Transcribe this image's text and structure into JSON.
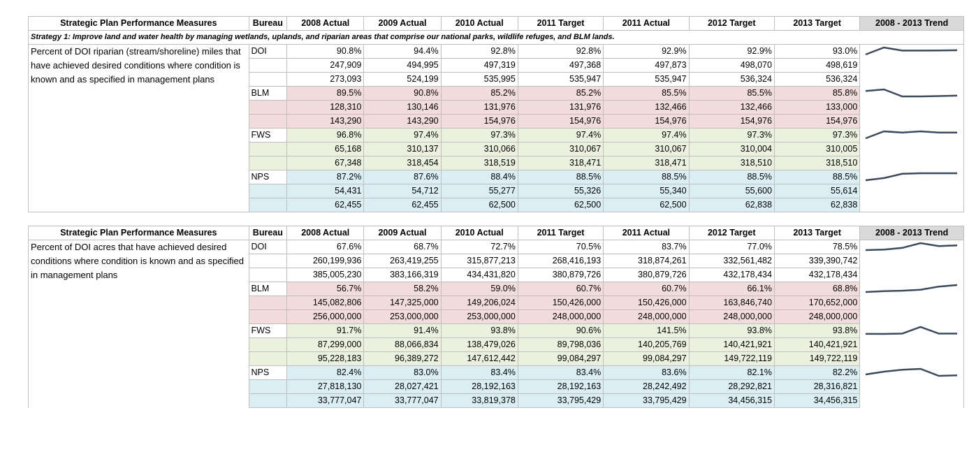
{
  "header": {
    "measure": "Strategic Plan Performance  Measures",
    "bureau": "Bureau",
    "cols": [
      "2008 Actual",
      "2009 Actual",
      "2010 Actual",
      "2011 Target",
      "2011 Actual",
      "2012 Target",
      "2013 Target"
    ],
    "trend": "2008 - 2013 Trend"
  },
  "strategy": "Strategy 1: Improve land and water health by managing wetlands, uplands, and riparian areas that comprise our national parks, wildlife refuges, and BLM lands.",
  "colors": {
    "blm": "#f2dcdb",
    "fws": "#ebf1de",
    "nps": "#dbeef4",
    "spark": "#3b4a5e"
  },
  "section1": {
    "measure": "Percent of DOI riparian (stream/shoreline) miles that have achieved desired conditions where condition is known and as specified in management plans",
    "groups": [
      {
        "bureau": "DOI",
        "cls": "doi",
        "rows": [
          [
            "90.8%",
            "94.4%",
            "92.8%",
            "92.8%",
            "92.9%",
            "92.9%",
            "93.0%"
          ],
          [
            "247,909",
            "494,995",
            "497,319",
            "497,368",
            "497,873",
            "498,070",
            "498,619"
          ],
          [
            "273,093",
            "524,199",
            "535,995",
            "535,947",
            "535,947",
            "536,324",
            "536,324"
          ]
        ],
        "trend": [
          90.8,
          94.4,
          92.8,
          92.8,
          92.9,
          93.0
        ]
      },
      {
        "bureau": "BLM",
        "cls": "blm",
        "rows": [
          [
            "89.5%",
            "90.8%",
            "85.2%",
            "85.2%",
            "85.5%",
            "85.5%",
            "85.8%"
          ],
          [
            "128,310",
            "130,146",
            "131,976",
            "131,976",
            "132,466",
            "132,466",
            "133,000"
          ],
          [
            "143,290",
            "143,290",
            "154,976",
            "154,976",
            "154,976",
            "154,976",
            "154,976"
          ]
        ],
        "trend": [
          89.5,
          90.8,
          85.2,
          85.2,
          85.5,
          85.8
        ]
      },
      {
        "bureau": "FWS",
        "cls": "fws",
        "rows": [
          [
            "96.8%",
            "97.4%",
            "97.3%",
            "97.4%",
            "97.4%",
            "97.3%",
            "97.3%"
          ],
          [
            "65,168",
            "310,137",
            "310,066",
            "310,067",
            "310,067",
            "310,004",
            "310,005"
          ],
          [
            "67,348",
            "318,454",
            "318,519",
            "318,471",
            "318,471",
            "318,510",
            "318,510"
          ]
        ],
        "trend": [
          96.8,
          97.4,
          97.3,
          97.4,
          97.3,
          97.3
        ]
      },
      {
        "bureau": "NPS",
        "cls": "nps",
        "rows": [
          [
            "87.2%",
            "87.6%",
            "88.4%",
            "88.5%",
            "88.5%",
            "88.5%",
            "88.5%"
          ],
          [
            "54,431",
            "54,712",
            "55,277",
            "55,326",
            "55,340",
            "55,600",
            "55,614"
          ],
          [
            "62,455",
            "62,455",
            "62,500",
            "62,500",
            "62,500",
            "62,838",
            "62,838"
          ]
        ],
        "trend": [
          87.2,
          87.6,
          88.4,
          88.5,
          88.5,
          88.5
        ]
      }
    ]
  },
  "section2": {
    "measure": "Percent of DOI acres that have achieved desired conditions where condition is known and as specified in management plans",
    "groups": [
      {
        "bureau": "DOI",
        "cls": "doi",
        "rows": [
          [
            "67.6%",
            "68.7%",
            "72.7%",
            "70.5%",
            "83.7%",
            "77.0%",
            "78.5%"
          ],
          [
            "260,199,936",
            "263,419,255",
            "315,877,213",
            "268,416,193",
            "318,874,261",
            "332,561,482",
            "339,390,742"
          ],
          [
            "385,005,230",
            "383,166,319",
            "434,431,820",
            "380,879,726",
            "380,879,726",
            "432,178,434",
            "432,178,434"
          ]
        ],
        "trend": [
          67.6,
          68.7,
          72.7,
          83.7,
          77.0,
          78.5
        ]
      },
      {
        "bureau": "BLM",
        "cls": "blm",
        "rows": [
          [
            "56.7%",
            "58.2%",
            "59.0%",
            "60.7%",
            "60.7%",
            "66.1%",
            "68.8%"
          ],
          [
            "145,082,806",
            "147,325,000",
            "149,206,024",
            "150,426,000",
            "150,426,000",
            "163,846,740",
            "170,652,000"
          ],
          [
            "256,000,000",
            "253,000,000",
            "253,000,000",
            "248,000,000",
            "248,000,000",
            "248,000,000",
            "248,000,000"
          ]
        ],
        "trend": [
          56.7,
          58.2,
          59.0,
          60.7,
          66.1,
          68.8
        ]
      },
      {
        "bureau": "FWS",
        "cls": "fws",
        "rows": [
          [
            "91.7%",
            "91.4%",
            "93.8%",
            "90.6%",
            "141.5%",
            "93.8%",
            "93.8%"
          ],
          [
            "87,299,000",
            "88,066,834",
            "138,479,026",
            "89,798,036",
            "140,205,769",
            "140,421,921",
            "140,421,921"
          ],
          [
            "95,228,183",
            "96,389,272",
            "147,612,442",
            "99,084,297",
            "99,084,297",
            "149,722,119",
            "149,722,119"
          ]
        ],
        "trend": [
          91.7,
          91.4,
          93.8,
          141.5,
          93.8,
          93.8
        ]
      },
      {
        "bureau": "NPS",
        "cls": "nps",
        "rows": [
          [
            "82.4%",
            "83.0%",
            "83.4%",
            "83.4%",
            "83.6%",
            "82.1%",
            "82.2%"
          ],
          [
            "27,818,130",
            "28,027,421",
            "28,192,163",
            "28,192,163",
            "28,242,492",
            "28,292,821",
            "28,316,821"
          ],
          [
            "33,777,047",
            "33,777,047",
            "33,819,378",
            "33,795,429",
            "33,795,429",
            "34,456,315",
            "34,456,315"
          ]
        ],
        "trend": [
          82.4,
          83.0,
          83.4,
          83.6,
          82.1,
          82.2
        ]
      }
    ]
  }
}
